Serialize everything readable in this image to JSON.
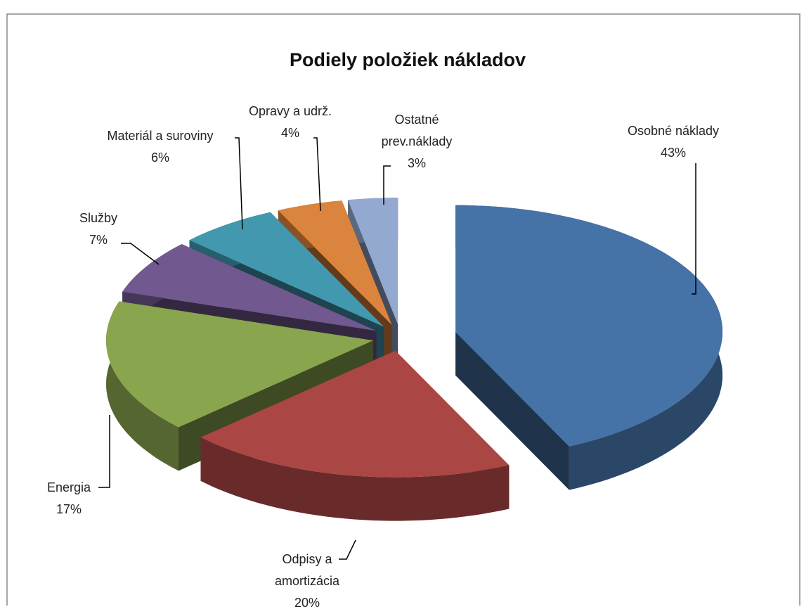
{
  "chart_data": {
    "type": "pie",
    "title": "Podiely položiek nákladov",
    "categories": [
      "Osobné náklady",
      "Odpisy a amortizácia",
      "Energia",
      "Služby",
      "Materiál a suroviny",
      "Opravy a udrž.",
      "Ostatné prev.náklady"
    ],
    "values": [
      43,
      20,
      17,
      7,
      6,
      4,
      3
    ],
    "value_labels": [
      "43%",
      "20%",
      "17%",
      "7%",
      "6%",
      "4%",
      "3%"
    ],
    "colors": [
      "#4572a7",
      "#aa4643",
      "#89a54e",
      "#71588f",
      "#4198af",
      "#db843d",
      "#93a9cf"
    ]
  }
}
